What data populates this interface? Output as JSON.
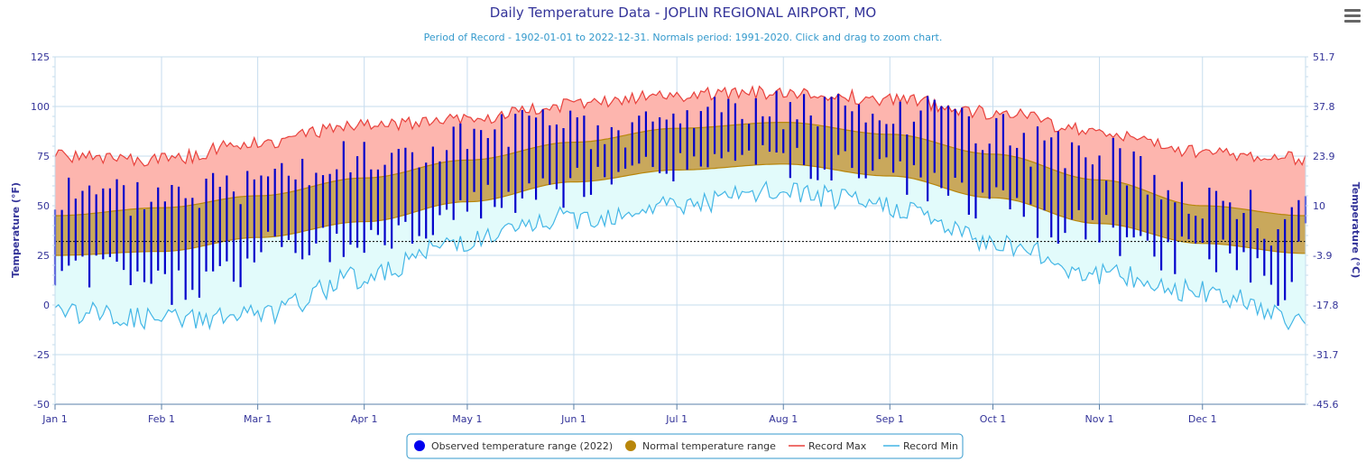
{
  "chart_data": {
    "type": "area",
    "title": "Daily Temperature Data - JOPLIN REGIONAL AIRPORT, MO",
    "subtitle": "Period of Record - 1902-01-01 to 2022-12-31. Normals period: 1991-2020. Click and drag to zoom chart.",
    "ylabel": "Temperature (°F)",
    "ylabel_right": "Temperature (°C)",
    "ylim": [
      -50,
      125
    ],
    "yticks": [
      -50,
      -25,
      0,
      25,
      50,
      75,
      100,
      125
    ],
    "yticks_right": [
      "-45.6",
      "-31.7",
      "-17.8",
      "-3.9",
      "10",
      "23.9",
      "37.8",
      "51.7"
    ],
    "x_month_labels": [
      "Jan 1",
      "Feb 1",
      "Mar 1",
      "Apr 1",
      "May 1",
      "Jun 1",
      "Jul 1",
      "Aug 1",
      "Sep 1",
      "Oct 1",
      "Nov 1",
      "Dec 1"
    ],
    "x_month_start_day": [
      1,
      32,
      60,
      91,
      121,
      152,
      182,
      213,
      244,
      274,
      305,
      335
    ],
    "days_in_year": 365,
    "freezing_line_f": 32,
    "legend_position": "bottom-center",
    "colors": {
      "observed": "#0000cc",
      "normal_fill": "#c9a85c",
      "normal_line": "#b8860b",
      "record_max_line": "#e8413c",
      "record_max_fill": "#fdb5ae",
      "record_min_line": "#43b6e6",
      "record_min_fill": "#e2fbfb",
      "title": "#333399",
      "subtitle": "#3399cc",
      "axis_label": "#333399",
      "grid": "#c6dcee"
    },
    "series": [
      {
        "name": "Observed temperature range (2022)",
        "kind": "daily-bars"
      },
      {
        "name": "Normal temperature range",
        "kind": "band",
        "high_anchors": [
          [
            1,
            45
          ],
          [
            32,
            49
          ],
          [
            60,
            55
          ],
          [
            91,
            64
          ],
          [
            121,
            73
          ],
          [
            152,
            82
          ],
          [
            182,
            89
          ],
          [
            213,
            92
          ],
          [
            244,
            86
          ],
          [
            274,
            76
          ],
          [
            305,
            63
          ],
          [
            335,
            50
          ],
          [
            365,
            45
          ]
        ],
        "low_anchors": [
          [
            1,
            25
          ],
          [
            32,
            27
          ],
          [
            60,
            34
          ],
          [
            91,
            42
          ],
          [
            121,
            52
          ],
          [
            152,
            62
          ],
          [
            182,
            68
          ],
          [
            213,
            71
          ],
          [
            244,
            65
          ],
          [
            274,
            54
          ],
          [
            305,
            41
          ],
          [
            335,
            31
          ],
          [
            365,
            26
          ]
        ]
      },
      {
        "name": "Record Max",
        "kind": "line",
        "anchors": [
          [
            1,
            75
          ],
          [
            32,
            73
          ],
          [
            60,
            82
          ],
          [
            91,
            90
          ],
          [
            121,
            94
          ],
          [
            152,
            101
          ],
          [
            182,
            106
          ],
          [
            213,
            107
          ],
          [
            244,
            104
          ],
          [
            274,
            97
          ],
          [
            305,
            87
          ],
          [
            335,
            77
          ],
          [
            365,
            74
          ]
        ]
      },
      {
        "name": "Record Min",
        "kind": "line",
        "anchors": [
          [
            1,
            -3
          ],
          [
            32,
            -7
          ],
          [
            60,
            -5
          ],
          [
            91,
            14
          ],
          [
            121,
            33
          ],
          [
            152,
            44
          ],
          [
            182,
            51
          ],
          [
            213,
            57
          ],
          [
            244,
            50
          ],
          [
            274,
            32
          ],
          [
            305,
            16
          ],
          [
            335,
            6
          ],
          [
            365,
            -8
          ]
        ]
      }
    ],
    "observed_2022": {
      "note_samples": "high/low pairs by day of year",
      "high_anchors": [
        [
          1,
          57
        ],
        [
          20,
          55
        ],
        [
          35,
          60
        ],
        [
          55,
          62
        ],
        [
          65,
          78
        ],
        [
          80,
          70
        ],
        [
          100,
          75
        ],
        [
          120,
          85
        ],
        [
          140,
          90
        ],
        [
          160,
          87
        ],
        [
          182,
          95
        ],
        [
          200,
          103
        ],
        [
          213,
          100
        ],
        [
          230,
          97
        ],
        [
          244,
          92
        ],
        [
          260,
          98
        ],
        [
          274,
          85
        ],
        [
          290,
          80
        ],
        [
          305,
          75
        ],
        [
          320,
          65
        ],
        [
          335,
          55
        ],
        [
          350,
          48
        ],
        [
          358,
          33
        ],
        [
          365,
          65
        ]
      ],
      "low_anchors": [
        [
          1,
          15
        ],
        [
          20,
          20
        ],
        [
          35,
          10
        ],
        [
          55,
          18
        ],
        [
          65,
          30
        ],
        [
          80,
          30
        ],
        [
          100,
          35
        ],
        [
          120,
          50
        ],
        [
          140,
          55
        ],
        [
          160,
          62
        ],
        [
          182,
          72
        ],
        [
          200,
          72
        ],
        [
          213,
          70
        ],
        [
          230,
          68
        ],
        [
          244,
          66
        ],
        [
          260,
          60
        ],
        [
          274,
          50
        ],
        [
          290,
          40
        ],
        [
          305,
          38
        ],
        [
          320,
          25
        ],
        [
          335,
          25
        ],
        [
          350,
          20
        ],
        [
          358,
          -5
        ],
        [
          365,
          40
        ]
      ]
    }
  }
}
